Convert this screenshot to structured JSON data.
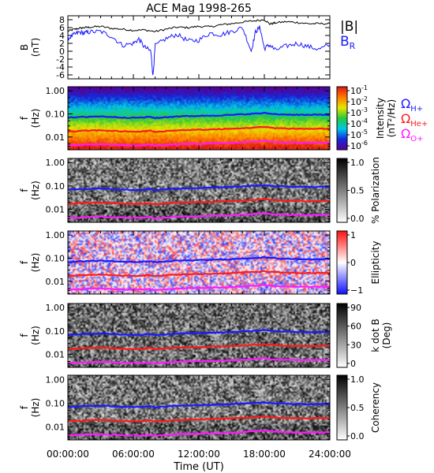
{
  "chart_data": {
    "type": "line",
    "title": "ACE Mag 1998-265",
    "xlabel": "Time (UT)",
    "x_ticks": [
      "00:00:00",
      "06:00:00",
      "12:00:00",
      "18:00:00",
      "24:00:00"
    ],
    "x_range_hours": [
      0,
      24
    ],
    "panels": [
      {
        "type": "line",
        "ylabel": "B",
        "yunit": "(nT)",
        "ylim": [
          -7,
          9
        ],
        "yticks": [
          8,
          6,
          4,
          2,
          0,
          -2,
          -4,
          -6
        ],
        "legend": [
          {
            "text": "|B|",
            "color": "#000000"
          },
          {
            "text": "B",
            "sub": "R",
            "color": "#1a1aff"
          }
        ],
        "series": [
          {
            "color": "#000000",
            "x": [
              0,
              0.5,
              1,
              1.5,
              2,
              3,
              4,
              5,
              6,
              7,
              8,
              9,
              10,
              11,
              12,
              13,
              14,
              15,
              16,
              17,
              18,
              18.5,
              19,
              20,
              21,
              22,
              23,
              24
            ],
            "y": [
              5.1,
              5.5,
              5.8,
              6.0,
              6.1,
              6.3,
              5.8,
              5.6,
              5.3,
              5.4,
              5.0,
              5.6,
              6.1,
              6.0,
              6.3,
              6.2,
              6.7,
              7.0,
              7.4,
              7.7,
              8.0,
              6.9,
              7.2,
              7.5,
              7.3,
              7.0,
              7.0,
              7.0
            ]
          },
          {
            "color": "#1a1aff",
            "x": [
              0,
              0.5,
              1,
              1.5,
              2,
              3,
              4,
              5,
              6,
              6.5,
              7,
              7.6,
              7.8,
              8,
              9,
              10,
              11,
              12,
              13,
              14,
              15,
              16,
              16.8,
              17.2,
              17.6,
              18,
              18.5,
              19,
              20,
              21,
              22,
              23,
              24
            ],
            "y": [
              3.2,
              4.1,
              4.8,
              4.6,
              4.9,
              5.0,
              3.8,
              1.5,
              2.0,
              3.1,
              1.1,
              0.0,
              -6.3,
              1.4,
              3.2,
              4.3,
              2.6,
              2.8,
              4.6,
              4.2,
              5.0,
              6.0,
              0.1,
              5.0,
              6.1,
              0.7,
              1.6,
              0.3,
              1.3,
              2.0,
              1.2,
              0.5,
              1.6
            ]
          }
        ]
      },
      {
        "type": "heatmap",
        "ylabel": "f",
        "yunit": "(Hz)",
        "yscale": "log",
        "ylim": [
          0.0028,
          1.5
        ],
        "yticks": [
          "1.00",
          "0.10",
          "0.01"
        ],
        "colorbar": {
          "label": "Intensity",
          "unit": "(nT²/Hz)",
          "scale": "log",
          "ticks": [
            "10",
            "10",
            "10",
            "10",
            "10",
            "10"
          ],
          "tick_exponents": [
            "-1",
            "-2",
            "-3",
            "-4",
            "-5",
            "-6"
          ]
        },
        "legend": [
          {
            "text": "Ω",
            "sub": "H+",
            "color": "#1a1aff"
          },
          {
            "text": "Ω",
            "sub": "He+",
            "color": "#ff1a1a"
          },
          {
            "text": "Ω",
            "sub": "O+",
            "color": "#ff1aff"
          }
        ]
      },
      {
        "type": "heatmap",
        "ylabel": "f",
        "yunit": "(Hz)",
        "yscale": "log",
        "yticks": [
          "1.00",
          "0.10",
          "0.01"
        ],
        "colorbar": {
          "label": "% Polarization",
          "ticks": [
            "1.0",
            "0.5",
            "0.0"
          ]
        }
      },
      {
        "type": "heatmap",
        "ylabel": "f",
        "yunit": "(Hz)",
        "yscale": "log",
        "yticks": [
          "1.00",
          "0.10",
          "0.01"
        ],
        "colorbar": {
          "label": "Ellipticity",
          "ticks": [
            "1",
            "0",
            "−1"
          ]
        }
      },
      {
        "type": "heatmap",
        "ylabel": "f",
        "yunit": "(Hz)",
        "yscale": "log",
        "yticks": [
          "1.00",
          "0.10",
          "0.01"
        ],
        "colorbar": {
          "label": "k dot B",
          "unit": "(Deg)",
          "ticks": [
            "90",
            "60",
            "30",
            "0"
          ]
        }
      },
      {
        "type": "heatmap",
        "ylabel": "f",
        "yunit": "(Hz)",
        "yscale": "log",
        "yticks": [
          "1.00",
          "0.10",
          "0.01"
        ],
        "colorbar": {
          "label": "Coherency",
          "ticks": [
            "1.0",
            "0.5",
            "0.0"
          ]
        }
      }
    ],
    "gyrofrequency_lines": {
      "x": [
        0,
        1,
        2,
        3,
        4,
        5,
        6,
        7,
        7.5,
        8,
        9,
        10,
        11,
        12,
        13,
        14,
        15,
        16,
        17,
        18,
        19,
        20,
        21,
        22,
        23,
        24
      ],
      "series": [
        {
          "name": "Ω",
          "sub": "H+",
          "color": "#1a1aff",
          "y": [
            0.068,
            0.072,
            0.076,
            0.078,
            0.074,
            0.07,
            0.068,
            0.07,
            0.075,
            0.066,
            0.072,
            0.078,
            0.08,
            0.082,
            0.084,
            0.087,
            0.09,
            0.096,
            0.102,
            0.108,
            0.098,
            0.094,
            0.092,
            0.09,
            0.092,
            0.092
          ]
        },
        {
          "name": "Ω",
          "sub": "He+",
          "color": "#ff1a1a",
          "y": [
            0.017,
            0.018,
            0.019,
            0.0195,
            0.0185,
            0.0175,
            0.017,
            0.0175,
            0.019,
            0.0165,
            0.018,
            0.0195,
            0.02,
            0.0205,
            0.021,
            0.022,
            0.0225,
            0.024,
            0.0255,
            0.027,
            0.0245,
            0.0235,
            0.023,
            0.0225,
            0.023,
            0.023
          ]
        },
        {
          "name": "Ω",
          "sub": "O+",
          "color": "#ff1aff",
          "y": [
            0.0043,
            0.0045,
            0.0048,
            0.0049,
            0.0046,
            0.0044,
            0.0043,
            0.0044,
            0.0047,
            0.0041,
            0.0045,
            0.0049,
            0.005,
            0.0051,
            0.0053,
            0.0054,
            0.0056,
            0.006,
            0.0064,
            0.0068,
            0.0061,
            0.0059,
            0.0058,
            0.0056,
            0.0058,
            0.0058
          ]
        }
      ]
    }
  }
}
